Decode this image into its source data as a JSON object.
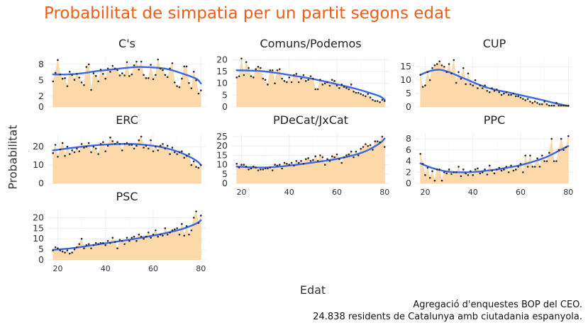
{
  "title": "Probabilitat de simpatia per un partit segons edat",
  "xlabel": "Edat",
  "ylabel": "Probabilitat",
  "caption_line1": "Agregació d'enquestes BOP del CEO.",
  "caption_line2": "24.838 residents de Catalunya amb ciutadania espanyola.",
  "colors": {
    "title": "#f25c14",
    "area": "#fdd7a6",
    "smooth": "#3a67e4",
    "points": "#2b2b2b",
    "grid": "#ebebeb"
  },
  "chart_data": [
    {
      "type": "area",
      "title": "C's",
      "xlim": [
        16,
        82
      ],
      "ylim": [
        0,
        9.3
      ],
      "yticks": [
        0,
        2,
        5,
        8
      ],
      "xticks": [],
      "x": [
        18,
        19,
        20,
        21,
        22,
        23,
        24,
        25,
        26,
        27,
        28,
        29,
        30,
        31,
        32,
        33,
        34,
        35,
        36,
        37,
        38,
        39,
        40,
        41,
        42,
        43,
        44,
        45,
        46,
        47,
        48,
        49,
        50,
        51,
        52,
        53,
        54,
        55,
        56,
        57,
        58,
        59,
        60,
        61,
        62,
        63,
        64,
        65,
        66,
        67,
        68,
        69,
        70,
        71,
        72,
        73,
        74,
        75,
        76,
        77,
        78,
        79,
        80
      ],
      "values": [
        4.8,
        6.4,
        8.8,
        6.1,
        5.3,
        5.4,
        3.9,
        6.6,
        6.0,
        5.1,
        6.2,
        5.5,
        4.6,
        4.1,
        7.5,
        8.0,
        3.2,
        6.3,
        5.8,
        4.8,
        7.0,
        6.2,
        5.3,
        7.2,
        6.6,
        7.7,
        7.2,
        6.9,
        5.9,
        6.3,
        5.9,
        8.4,
        5.8,
        6.1,
        7.8,
        8.5,
        7.0,
        8.5,
        6.0,
        5.4,
        5.4,
        7.9,
        5.2,
        6.0,
        8.9,
        7.2,
        6.9,
        6.0,
        5.6,
        7.2,
        8.2,
        4.6,
        3.9,
        3.7,
        5.3,
        7.6,
        7.6,
        4.5,
        3.5,
        6.6,
        5.0,
        2.5,
        3.1
      ],
      "smooth": [
        [
          18,
          6.1
        ],
        [
          24,
          6.1
        ],
        [
          30,
          6.3
        ],
        [
          36,
          6.7
        ],
        [
          42,
          7.0
        ],
        [
          48,
          7.3
        ],
        [
          54,
          7.5
        ],
        [
          60,
          7.4
        ],
        [
          66,
          7.1
        ],
        [
          72,
          6.3
        ],
        [
          78,
          5.3
        ],
        [
          80,
          4.4
        ]
      ]
    },
    {
      "type": "area",
      "title": "Comuns/Podemos",
      "xlim": [
        16,
        82
      ],
      "ylim": [
        0,
        21
      ],
      "yticks": [
        0,
        5,
        10,
        15,
        20
      ],
      "xticks": [],
      "x": [
        18,
        19,
        20,
        21,
        22,
        23,
        24,
        25,
        26,
        27,
        28,
        29,
        30,
        31,
        32,
        33,
        34,
        35,
        36,
        37,
        38,
        39,
        40,
        41,
        42,
        43,
        44,
        45,
        46,
        47,
        48,
        49,
        50,
        51,
        52,
        53,
        54,
        55,
        56,
        57,
        58,
        59,
        60,
        61,
        62,
        63,
        64,
        65,
        66,
        67,
        68,
        69,
        70,
        71,
        72,
        73,
        74,
        75,
        76,
        77,
        78,
        79,
        80
      ],
      "values": [
        12.5,
        13.0,
        20.5,
        13.5,
        19.0,
        16.5,
        13.0,
        12.5,
        16.0,
        17.0,
        16.5,
        12.0,
        11.5,
        9.5,
        15.5,
        15.5,
        10.0,
        15.5,
        16.0,
        12.0,
        11.0,
        10.5,
        12.5,
        10.5,
        13.5,
        14.0,
        10.5,
        12.0,
        13.5,
        11.0,
        11.5,
        13.0,
        12.0,
        7.5,
        7.5,
        11.5,
        9.5,
        10.0,
        10.5,
        9.0,
        11.5,
        11.0,
        9.0,
        8.0,
        9.5,
        8.5,
        8.0,
        7.5,
        9.5,
        6.5,
        6.0,
        6.0,
        5.5,
        5.0,
        4.5,
        5.5,
        4.0,
        3.0,
        2.5,
        2.5,
        2.0,
        3.0,
        2.5
      ],
      "smooth": [
        [
          18,
          15.5
        ],
        [
          24,
          15.4
        ],
        [
          30,
          15.0
        ],
        [
          36,
          14.2
        ],
        [
          42,
          13.2
        ],
        [
          48,
          12.2
        ],
        [
          54,
          11.0
        ],
        [
          60,
          9.6
        ],
        [
          66,
          8.2
        ],
        [
          72,
          6.5
        ],
        [
          78,
          4.5
        ],
        [
          80,
          3.0
        ]
      ]
    },
    {
      "type": "area",
      "title": "CUP",
      "xlim": [
        16,
        82
      ],
      "ylim": [
        0,
        18.5
      ],
      "yticks": [
        0,
        5,
        10,
        15
      ],
      "xticks": [],
      "x": [
        18,
        19,
        20,
        21,
        22,
        23,
        24,
        25,
        26,
        27,
        28,
        29,
        30,
        31,
        32,
        33,
        34,
        35,
        36,
        37,
        38,
        39,
        40,
        41,
        42,
        43,
        44,
        45,
        46,
        47,
        48,
        49,
        50,
        51,
        52,
        53,
        54,
        55,
        56,
        57,
        58,
        59,
        60,
        61,
        62,
        63,
        64,
        65,
        66,
        67,
        68,
        69,
        70,
        71,
        72,
        73,
        74,
        75,
        76,
        77,
        78,
        79,
        80
      ],
      "values": [
        12.0,
        7.5,
        8.0,
        13.0,
        10.0,
        14.5,
        15.5,
        16.0,
        17.0,
        15.5,
        15.0,
        13.0,
        16.0,
        12.5,
        17.5,
        9.0,
        13.0,
        10.5,
        14.5,
        8.5,
        12.5,
        8.5,
        8.0,
        10.0,
        7.0,
        8.0,
        7.0,
        8.0,
        6.0,
        5.5,
        7.0,
        6.0,
        6.5,
        5.5,
        4.5,
        5.0,
        5.5,
        4.5,
        4.5,
        5.0,
        4.0,
        4.0,
        3.5,
        3.0,
        2.5,
        3.0,
        2.0,
        1.5,
        2.0,
        1.5,
        1.0,
        1.0,
        2.0,
        1.0,
        0.5,
        0.5,
        0.5,
        1.5,
        0.5,
        0.5,
        0.5,
        0.5,
        0.5
      ],
      "smooth": [
        [
          18,
          12.0
        ],
        [
          22,
          13.4
        ],
        [
          26,
          13.9
        ],
        [
          30,
          13.0
        ],
        [
          34,
          11.5
        ],
        [
          38,
          10.0
        ],
        [
          42,
          8.5
        ],
        [
          46,
          7.2
        ],
        [
          50,
          6.3
        ],
        [
          56,
          5.2
        ],
        [
          62,
          4.0
        ],
        [
          68,
          2.8
        ],
        [
          74,
          1.5
        ],
        [
          80,
          0.3
        ]
      ]
    },
    {
      "type": "area",
      "title": "ERC",
      "xlim": [
        16,
        82
      ],
      "ylim": [
        0,
        27
      ],
      "yticks": [
        0,
        10,
        20
      ],
      "xticks": [],
      "x": [
        18,
        19,
        20,
        21,
        22,
        23,
        24,
        25,
        26,
        27,
        28,
        29,
        30,
        31,
        32,
        33,
        34,
        35,
        36,
        37,
        38,
        39,
        40,
        41,
        42,
        43,
        44,
        45,
        46,
        47,
        48,
        49,
        50,
        51,
        52,
        53,
        54,
        55,
        56,
        57,
        58,
        59,
        60,
        61,
        62,
        63,
        64,
        65,
        66,
        67,
        68,
        69,
        70,
        71,
        72,
        73,
        74,
        75,
        76,
        77,
        78,
        79,
        80
      ],
      "values": [
        16.5,
        21.0,
        14.5,
        18.5,
        22.0,
        15.0,
        20.0,
        16.0,
        18.0,
        17.0,
        19.0,
        17.5,
        21.5,
        19.5,
        20.0,
        22.0,
        17.0,
        20.0,
        19.0,
        16.0,
        21.5,
        22.5,
        17.5,
        20.5,
        25.0,
        23.0,
        21.5,
        22.5,
        21.5,
        18.0,
        21.5,
        22.0,
        21.0,
        21.0,
        19.0,
        20.5,
        23.5,
        25.5,
        19.5,
        20.5,
        19.0,
        23.5,
        17.5,
        20.0,
        18.0,
        20.5,
        21.5,
        19.0,
        20.5,
        16.0,
        19.5,
        17.0,
        16.0,
        17.0,
        17.5,
        14.0,
        15.0,
        16.0,
        10.0,
        12.0,
        9.0,
        8.5,
        10.0
      ],
      "smooth": [
        [
          18,
          18.0
        ],
        [
          24,
          19.0
        ],
        [
          30,
          20.0
        ],
        [
          36,
          20.8
        ],
        [
          42,
          21.3
        ],
        [
          48,
          21.5
        ],
        [
          54,
          21.3
        ],
        [
          60,
          20.5
        ],
        [
          66,
          19.0
        ],
        [
          72,
          16.5
        ],
        [
          78,
          12.5
        ],
        [
          80,
          10.0
        ]
      ]
    },
    {
      "type": "area",
      "title": "PDeCat/JxCat",
      "xlim": [
        16,
        82
      ],
      "ylim": [
        0,
        26.5
      ],
      "yticks": [
        0,
        5,
        10,
        15,
        20,
        25
      ],
      "xticks": [
        20,
        40,
        60,
        80
      ],
      "x": [
        18,
        19,
        20,
        21,
        22,
        23,
        24,
        25,
        26,
        27,
        28,
        29,
        30,
        31,
        32,
        33,
        34,
        35,
        36,
        37,
        38,
        39,
        40,
        41,
        42,
        43,
        44,
        45,
        46,
        47,
        48,
        49,
        50,
        51,
        52,
        53,
        54,
        55,
        56,
        57,
        58,
        59,
        60,
        61,
        62,
        63,
        64,
        65,
        66,
        67,
        68,
        69,
        70,
        71,
        72,
        73,
        74,
        75,
        76,
        77,
        78,
        79,
        80
      ],
      "values": [
        10.5,
        8.5,
        10.0,
        10.0,
        9.0,
        7.5,
        8.0,
        9.0,
        8.5,
        7.0,
        7.5,
        7.5,
        8.0,
        8.0,
        8.5,
        7.0,
        10.0,
        9.5,
        10.0,
        8.0,
        11.0,
        10.5,
        10.0,
        11.0,
        9.5,
        12.0,
        11.0,
        12.0,
        10.5,
        13.0,
        13.5,
        12.0,
        12.5,
        14.5,
        12.0,
        15.0,
        14.0,
        10.0,
        13.0,
        12.0,
        14.5,
        14.0,
        15.5,
        13.0,
        11.0,
        14.0,
        15.0,
        15.5,
        17.0,
        14.0,
        17.0,
        15.0,
        18.5,
        19.5,
        21.0,
        20.0,
        20.5,
        18.0,
        22.5,
        22.5,
        22.0,
        25.0,
        19.5
      ],
      "smooth": [
        [
          18,
          9.0
        ],
        [
          24,
          8.6
        ],
        [
          30,
          8.5
        ],
        [
          36,
          9.0
        ],
        [
          42,
          9.8
        ],
        [
          48,
          10.8
        ],
        [
          54,
          11.9
        ],
        [
          60,
          13.1
        ],
        [
          66,
          14.8
        ],
        [
          72,
          17.2
        ],
        [
          78,
          21.5
        ],
        [
          80,
          24.0
        ]
      ]
    },
    {
      "type": "area",
      "title": "PPC",
      "xlim": [
        16,
        82
      ],
      "ylim": [
        0,
        8.9
      ],
      "yticks": [
        0,
        2,
        4,
        6,
        8
      ],
      "xticks": [
        20,
        40,
        60,
        80
      ],
      "x": [
        18,
        19,
        20,
        21,
        22,
        23,
        24,
        25,
        26,
        27,
        28,
        29,
        30,
        31,
        32,
        33,
        34,
        35,
        36,
        37,
        38,
        39,
        40,
        41,
        42,
        43,
        44,
        45,
        46,
        47,
        48,
        49,
        50,
        51,
        52,
        53,
        54,
        55,
        56,
        57,
        58,
        59,
        60,
        61,
        62,
        63,
        64,
        65,
        66,
        67,
        68,
        69,
        70,
        71,
        72,
        73,
        74,
        75,
        76,
        77,
        78,
        79,
        80
      ],
      "values": [
        5.3,
        3.5,
        1.5,
        2.8,
        1.0,
        2.2,
        0.5,
        2.5,
        2.5,
        0.5,
        2.0,
        1.8,
        2.5,
        1.7,
        2.0,
        2.0,
        3.0,
        1.3,
        2.5,
        1.8,
        1.5,
        2.2,
        1.5,
        2.5,
        2.7,
        1.8,
        2.0,
        2.5,
        1.6,
        3.2,
        2.3,
        1.8,
        2.5,
        2.8,
        2.3,
        2.5,
        3.0,
        2.0,
        3.2,
        2.3,
        2.5,
        3.0,
        3.5,
        2.0,
        5.0,
        3.0,
        5.0,
        3.0,
        3.0,
        4.5,
        3.0,
        5.0,
        4.0,
        4.0,
        5.5,
        8.0,
        4.0,
        4.0,
        6.0,
        8.0,
        6.0,
        6.5,
        8.5
      ],
      "smooth": [
        [
          18,
          3.6
        ],
        [
          22,
          2.9
        ],
        [
          26,
          2.4
        ],
        [
          30,
          2.1
        ],
        [
          34,
          2.0
        ],
        [
          38,
          2.0
        ],
        [
          42,
          2.1
        ],
        [
          46,
          2.3
        ],
        [
          50,
          2.5
        ],
        [
          54,
          2.8
        ],
        [
          58,
          3.1
        ],
        [
          62,
          3.5
        ],
        [
          66,
          4.0
        ],
        [
          70,
          4.6
        ],
        [
          74,
          5.4
        ],
        [
          78,
          6.3
        ],
        [
          80,
          6.7
        ]
      ]
    },
    {
      "type": "area",
      "title": "PSC",
      "xlim": [
        16,
        82
      ],
      "ylim": [
        0,
        23.5
      ],
      "yticks": [
        0,
        5,
        10,
        15,
        20
      ],
      "xticks": [
        20,
        40,
        60,
        80
      ],
      "x": [
        18,
        19,
        20,
        21,
        22,
        23,
        24,
        25,
        26,
        27,
        28,
        29,
        30,
        31,
        32,
        33,
        34,
        35,
        36,
        37,
        38,
        39,
        40,
        41,
        42,
        43,
        44,
        45,
        46,
        47,
        48,
        49,
        50,
        51,
        52,
        53,
        54,
        55,
        56,
        57,
        58,
        59,
        60,
        61,
        62,
        63,
        64,
        65,
        66,
        67,
        68,
        69,
        70,
        71,
        72,
        73,
        74,
        75,
        76,
        77,
        78,
        79,
        80
      ],
      "values": [
        4.5,
        6.0,
        5.5,
        4.5,
        4.0,
        3.5,
        4.5,
        3.0,
        3.5,
        5.0,
        6.0,
        7.5,
        10.0,
        5.5,
        7.0,
        7.5,
        5.5,
        7.0,
        8.0,
        7.5,
        8.0,
        8.0,
        7.0,
        9.0,
        8.0,
        10.5,
        8.5,
        5.5,
        9.5,
        9.0,
        7.5,
        10.5,
        9.0,
        10.5,
        11.0,
        9.0,
        12.0,
        11.0,
        10.0,
        11.0,
        13.0,
        10.5,
        12.0,
        14.0,
        11.0,
        12.0,
        11.5,
        15.0,
        12.0,
        13.0,
        14.0,
        14.5,
        15.0,
        12.0,
        17.0,
        11.5,
        16.0,
        12.0,
        14.0,
        20.0,
        23.0,
        17.5,
        21.0
      ],
      "smooth": [
        [
          18,
          4.8
        ],
        [
          24,
          5.3
        ],
        [
          30,
          6.2
        ],
        [
          36,
          7.2
        ],
        [
          42,
          8.2
        ],
        [
          48,
          9.2
        ],
        [
          54,
          10.3
        ],
        [
          60,
          11.5
        ],
        [
          66,
          12.9
        ],
        [
          72,
          14.6
        ],
        [
          78,
          17.2
        ],
        [
          80,
          18.8
        ]
      ]
    }
  ]
}
